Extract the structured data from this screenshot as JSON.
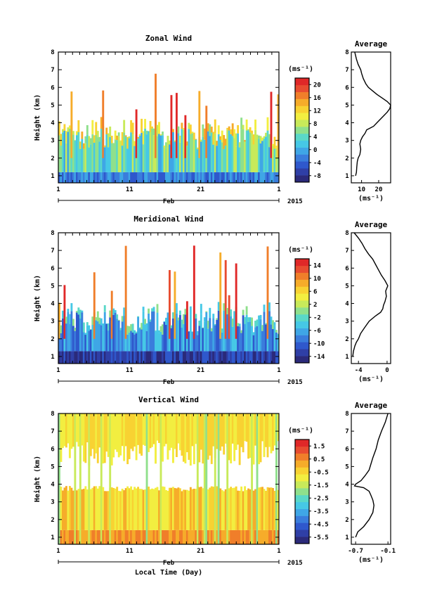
{
  "colors": {
    "palette": [
      "#2b2a7a",
      "#2f3fa6",
      "#2f58cc",
      "#3a7ddc",
      "#3fa6e6",
      "#46c8e6",
      "#5ad8c8",
      "#8fe08c",
      "#c8ea5a",
      "#f2ee40",
      "#f8d232",
      "#f6ac2a",
      "#f07e2a",
      "#e84c30",
      "#e02828"
    ]
  },
  "chart_data": [
    {
      "type": "heatmap",
      "title": "Zonal Wind",
      "xlabel": "",
      "ylabel": "Height (km)",
      "xlim": [
        1,
        32
      ],
      "xticks": [
        "1",
        "11",
        "21",
        "1"
      ],
      "xtick_days": [
        1,
        11,
        21,
        32
      ],
      "month_label": "Feb",
      "year_label": "2015",
      "ylim": [
        0.6,
        8
      ],
      "yticks": [
        "1",
        "2",
        "3",
        "4",
        "5",
        "6",
        "7",
        "8"
      ],
      "colorbar": {
        "unit": "(ms⁻¹)",
        "ticks": [
          "20",
          "16",
          "12",
          "8",
          "4",
          "0",
          "-4",
          "-8"
        ],
        "range": [
          -10,
          22
        ]
      },
      "profile": {
        "title": "Average",
        "xlabel": "(ms⁻¹)",
        "xticks": [
          "10",
          "20"
        ],
        "xlim": [
          4,
          27
        ],
        "z": [
          1.0,
          1.2,
          1.5,
          1.8,
          2.0,
          2.2,
          2.5,
          2.8,
          3.0,
          3.2,
          3.4,
          3.6,
          3.7,
          3.8,
          4.0,
          4.2,
          4.4,
          4.6,
          4.8,
          5.0,
          5.2,
          5.4,
          5.6,
          5.8,
          6.0,
          6.2,
          6.5,
          6.8,
          7.0,
          7.3,
          7.6,
          8.0
        ],
        "v": [
          6.5,
          7,
          7.2,
          7.5,
          8,
          9,
          9.5,
          9,
          9.5,
          10.5,
          12,
          13,
          15,
          17,
          19,
          21,
          23,
          25,
          26.5,
          27,
          25,
          22,
          19,
          16.5,
          14,
          12.5,
          11,
          10,
          9.5,
          8,
          7,
          6
        ]
      }
    },
    {
      "type": "heatmap",
      "title": "Meridional Wind",
      "xlabel": "",
      "ylabel": "Height (km)",
      "xlim": [
        1,
        32
      ],
      "xticks": [
        "1",
        "11",
        "21",
        "1"
      ],
      "xtick_days": [
        1,
        11,
        21,
        32
      ],
      "month_label": "Feb",
      "year_label": "2015",
      "ylim": [
        0.6,
        8
      ],
      "yticks": [
        "1",
        "2",
        "3",
        "4",
        "5",
        "6",
        "7",
        "8"
      ],
      "colorbar": {
        "unit": "(ms⁻¹)",
        "ticks": [
          "14",
          "10",
          "6",
          "2",
          "-2",
          "-6",
          "-10",
          "-14"
        ],
        "range": [
          -16,
          16
        ]
      },
      "profile": {
        "title": "Average",
        "xlabel": "(ms⁻¹)",
        "xticks": [
          "-4",
          "0"
        ],
        "xlim": [
          -5,
          0.5
        ],
        "z": [
          1.0,
          1.3,
          1.6,
          1.8,
          2.0,
          2.3,
          2.6,
          3.0,
          3.3,
          3.5,
          3.7,
          3.9,
          4.1,
          4.4,
          4.7,
          5.0,
          5.3,
          5.6,
          5.9,
          6.2,
          6.5,
          6.8,
          7.1,
          7.4,
          7.7,
          8.0
        ],
        "v": [
          -4.8,
          -4.7,
          -4.5,
          -4.3,
          -4,
          -3.7,
          -3.2,
          -2.5,
          -1.6,
          -0.9,
          -0.6,
          -0.5,
          -0.3,
          -0.1,
          -0.2,
          0.1,
          -0.3,
          -0.8,
          -1.2,
          -1.6,
          -2.0,
          -2.6,
          -3.1,
          -3.5,
          -4.0,
          -4.6
        ]
      }
    },
    {
      "type": "heatmap",
      "title": "Vertical Wind",
      "xlabel": "Local Time (Day)",
      "ylabel": "Height (km)",
      "xlim": [
        1,
        32
      ],
      "xticks": [
        "1",
        "11",
        "21",
        "1"
      ],
      "xtick_days": [
        1,
        11,
        21,
        32
      ],
      "month_label": "Feb",
      "year_label": "2015",
      "ylim": [
        0.6,
        8
      ],
      "yticks": [
        "1",
        "2",
        "3",
        "4",
        "5",
        "6",
        "7",
        "8"
      ],
      "colorbar": {
        "unit": "(ms⁻¹)",
        "ticks": [
          "1.5",
          "0.5",
          "-0.5",
          "-1.5",
          "-2.5",
          "-3.5",
          "-4.5",
          "-5.5"
        ],
        "range": [
          -6,
          2
        ]
      },
      "profile": {
        "title": "Average",
        "xlabel": "(ms⁻¹)",
        "xticks": [
          "-0.7",
          "-0.1"
        ],
        "xlim": [
          -0.78,
          -0.05
        ],
        "z": [
          1.0,
          1.3,
          1.6,
          2.0,
          2.4,
          2.8,
          3.1,
          3.4,
          3.6,
          3.8,
          3.9,
          4.0,
          4.2,
          4.5,
          4.8,
          5.1,
          5.5,
          6.0,
          6.5,
          7.0,
          7.5,
          8.0
        ],
        "v": [
          -0.7,
          -0.66,
          -0.55,
          -0.45,
          -0.38,
          -0.36,
          -0.38,
          -0.42,
          -0.45,
          -0.55,
          -0.72,
          -0.7,
          -0.6,
          -0.52,
          -0.45,
          -0.42,
          -0.38,
          -0.32,
          -0.28,
          -0.22,
          -0.15,
          -0.1
        ]
      }
    }
  ]
}
